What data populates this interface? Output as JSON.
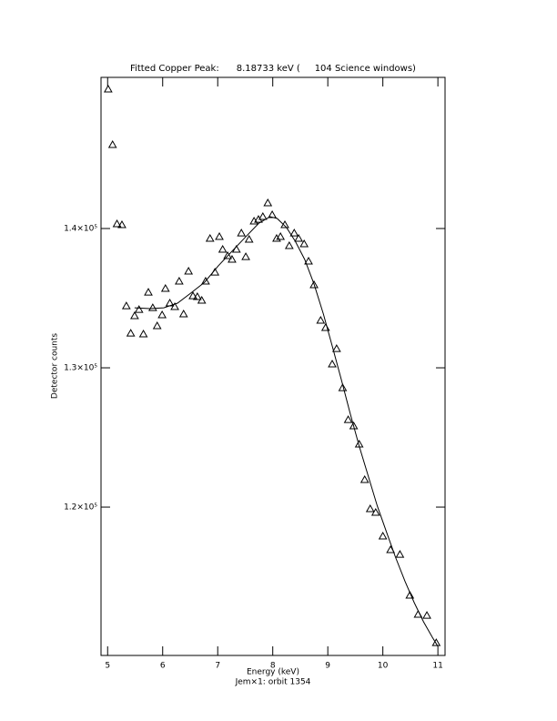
{
  "chart_data": {
    "type": "scatter",
    "title": "Fitted Copper Peak:      8.18733 keV (     104 Science windows)",
    "x_label": "Energy (keV)",
    "subtitle": "Jem×1: orbit 1354",
    "y_label": "Detector counts",
    "xlim": [
      4.88,
      11.13
    ],
    "ylim": [
      109350,
      150850
    ],
    "xticks": [
      5,
      6,
      7,
      8,
      9,
      10,
      11
    ],
    "yticks": [
      {
        "value": 120000,
        "label": "1.2×10⁵"
      },
      {
        "value": 130000,
        "label": "1.3×10⁵"
      },
      {
        "value": 140000,
        "label": "1.4×10⁵"
      }
    ],
    "series": [
      {
        "type": "scatter",
        "marker": "triangle",
        "color": "#000000",
        "x": [
          5.01,
          5.09,
          5.17,
          5.26,
          5.34,
          5.42,
          5.49,
          5.57,
          5.65,
          5.74,
          5.82,
          5.9,
          5.99,
          6.05,
          6.13,
          6.22,
          6.3,
          6.38,
          6.47,
          6.55,
          6.63,
          6.71,
          6.78,
          6.86,
          6.95,
          7.03,
          7.09,
          7.18,
          7.26,
          7.34,
          7.43,
          7.51,
          7.57,
          7.66,
          7.74,
          7.82,
          7.91,
          7.99,
          8.07,
          8.14,
          8.22,
          8.3,
          8.39,
          8.47,
          8.57,
          8.65,
          8.75,
          8.87,
          8.96,
          9.08,
          9.16,
          9.27,
          9.37,
          9.47,
          9.57,
          9.67,
          9.77,
          9.87,
          10.0,
          10.14,
          10.31,
          10.49,
          10.64,
          10.8,
          10.97
        ],
        "values": [
          150000,
          146010,
          140330,
          140260,
          134440,
          132480,
          133730,
          134180,
          132420,
          135420,
          134310,
          133010,
          133790,
          135690,
          134640,
          134380,
          136210,
          133860,
          136930,
          135160,
          135100,
          134840,
          136210,
          139280,
          136860,
          139410,
          138500,
          138040,
          137780,
          138500,
          139670,
          137970,
          139220,
          140520,
          140650,
          140850,
          141830,
          140980,
          139280,
          139410,
          140260,
          138760,
          139670,
          139280,
          138890,
          137650,
          135950,
          133400,
          132880,
          130260,
          131370,
          128560,
          126270,
          125820,
          124510,
          121960,
          119870,
          119610,
          117910,
          116930,
          116600,
          113660,
          112290,
          112220,
          110260
        ]
      },
      {
        "type": "line",
        "color": "#000000",
        "x": [
          5.49,
          5.77,
          6.02,
          6.27,
          6.51,
          6.76,
          7.01,
          7.26,
          7.51,
          7.75,
          7.95,
          8.08,
          8.25,
          8.41,
          8.58,
          8.75,
          8.92,
          9.08,
          9.25,
          9.41,
          9.57,
          9.74,
          9.9,
          10.07,
          10.23,
          10.4,
          10.57,
          10.74,
          10.9,
          11.0
        ],
        "values": [
          134310,
          134250,
          134310,
          134640,
          135360,
          136140,
          137320,
          138370,
          139410,
          140390,
          140850,
          140720,
          140070,
          139080,
          137780,
          136010,
          133860,
          131570,
          129090,
          126670,
          124380,
          122160,
          120070,
          118170,
          116400,
          114700,
          113140,
          111760,
          110650,
          110000
        ]
      }
    ]
  }
}
